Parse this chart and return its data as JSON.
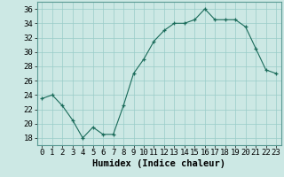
{
  "x": [
    0,
    1,
    2,
    3,
    4,
    5,
    6,
    7,
    8,
    9,
    10,
    11,
    12,
    13,
    14,
    15,
    16,
    17,
    18,
    19,
    20,
    21,
    22,
    23
  ],
  "y": [
    23.5,
    24.0,
    22.5,
    20.5,
    18.0,
    19.5,
    18.5,
    18.5,
    22.5,
    27.0,
    29.0,
    31.5,
    33.0,
    34.0,
    34.0,
    34.5,
    36.0,
    34.5,
    34.5,
    34.5,
    33.5,
    30.5,
    27.5,
    27.0
  ],
  "xlabel": "Humidex (Indice chaleur)",
  "xlim": [
    -0.5,
    23.5
  ],
  "ylim": [
    17,
    37
  ],
  "yticks": [
    18,
    20,
    22,
    24,
    26,
    28,
    30,
    32,
    34,
    36
  ],
  "xticks": [
    0,
    1,
    2,
    3,
    4,
    5,
    6,
    7,
    8,
    9,
    10,
    11,
    12,
    13,
    14,
    15,
    16,
    17,
    18,
    19,
    20,
    21,
    22,
    23
  ],
  "line_color": "#1a6b5a",
  "marker_color": "#1a6b5a",
  "bg_color": "#cce8e4",
  "grid_color": "#99ccc8",
  "xlabel_fontsize": 7.5,
  "tick_fontsize": 6.5
}
